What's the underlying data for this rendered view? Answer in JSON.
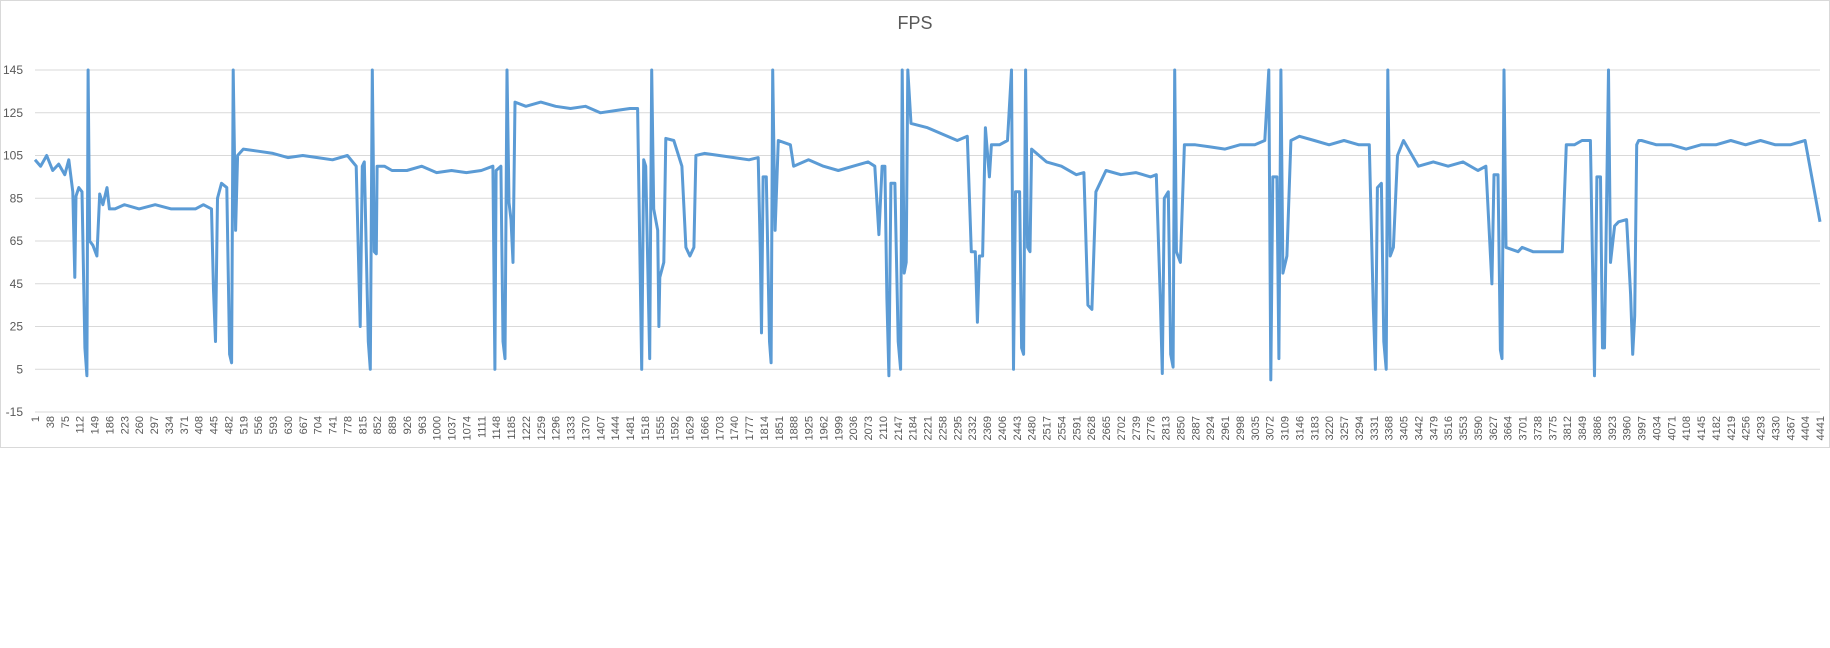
{
  "chart_data": {
    "type": "line",
    "title": "FPS",
    "xlabel": "",
    "ylabel": "",
    "ylim": [
      -15,
      145
    ],
    "yticks": [
      -15,
      5,
      25,
      45,
      65,
      85,
      105,
      125,
      145
    ],
    "grid": true,
    "legend": "none",
    "x_tick_labels": [
      "1",
      "38",
      "75",
      "112",
      "149",
      "186",
      "223",
      "260",
      "297",
      "334",
      "371",
      "408",
      "445",
      "482",
      "519",
      "556",
      "593",
      "630",
      "667",
      "704",
      "741",
      "778",
      "815",
      "852",
      "889",
      "926",
      "963",
      "1000",
      "1037",
      "1074",
      "1111",
      "1148",
      "1185",
      "1222",
      "1259",
      "1296",
      "1333",
      "1370",
      "1407",
      "1444",
      "1481",
      "1518",
      "1555",
      "1592",
      "1629",
      "1666",
      "1703",
      "1740",
      "1777",
      "1814",
      "1851",
      "1888",
      "1925",
      "1962",
      "1999",
      "2036",
      "2073",
      "2110",
      "2147",
      "2184",
      "2221",
      "2258",
      "2295",
      "2332",
      "2369",
      "2406",
      "2443",
      "2480",
      "2517",
      "2554",
      "2591",
      "2628",
      "2665",
      "2702",
      "2739",
      "2776",
      "2813",
      "2850",
      "2887",
      "2924",
      "2961",
      "2998",
      "3035",
      "3072",
      "3109",
      "3146",
      "3183",
      "3220",
      "3257",
      "3294",
      "3331",
      "3368",
      "3405",
      "3442",
      "3479",
      "3516",
      "3553",
      "3590",
      "3627",
      "3664",
      "3701",
      "3738",
      "3775",
      "3812",
      "3849",
      "3886",
      "3923",
      "3960",
      "3997",
      "4034",
      "4071",
      "4108",
      "4145",
      "4182",
      "4219",
      "4256",
      "4293",
      "4330",
      "4367",
      "4404",
      "4441"
    ],
    "series": [
      {
        "color": "#5b9bd5",
        "points": [
          [
            1,
            103
          ],
          [
            15,
            100
          ],
          [
            30,
            105
          ],
          [
            45,
            98
          ],
          [
            60,
            101
          ],
          [
            75,
            96
          ],
          [
            85,
            103
          ],
          [
            95,
            88
          ],
          [
            100,
            48
          ],
          [
            103,
            86
          ],
          [
            110,
            90
          ],
          [
            118,
            88
          ],
          [
            125,
            15
          ],
          [
            130,
            2
          ],
          [
            133,
            145
          ],
          [
            137,
            65
          ],
          [
            145,
            63
          ],
          [
            155,
            58
          ],
          [
            162,
            87
          ],
          [
            170,
            82
          ],
          [
            180,
            90
          ],
          [
            186,
            80
          ],
          [
            200,
            80
          ],
          [
            223,
            82
          ],
          [
            260,
            80
          ],
          [
            300,
            82
          ],
          [
            340,
            80
          ],
          [
            371,
            80
          ],
          [
            400,
            80
          ],
          [
            420,
            82
          ],
          [
            440,
            80
          ],
          [
            445,
            42
          ],
          [
            450,
            18
          ],
          [
            455,
            85
          ],
          [
            465,
            92
          ],
          [
            478,
            90
          ],
          [
            485,
            12
          ],
          [
            490,
            8
          ],
          [
            494,
            145
          ],
          [
            500,
            70
          ],
          [
            505,
            105
          ],
          [
            519,
            108
          ],
          [
            556,
            107
          ],
          [
            593,
            106
          ],
          [
            630,
            104
          ],
          [
            667,
            105
          ],
          [
            704,
            104
          ],
          [
            741,
            103
          ],
          [
            778,
            105
          ],
          [
            800,
            100
          ],
          [
            810,
            25
          ],
          [
            815,
            100
          ],
          [
            820,
            102
          ],
          [
            830,
            18
          ],
          [
            835,
            5
          ],
          [
            840,
            145
          ],
          [
            845,
            60
          ],
          [
            850,
            59
          ],
          [
            852,
            100
          ],
          [
            870,
            100
          ],
          [
            889,
            98
          ],
          [
            926,
            98
          ],
          [
            963,
            100
          ],
          [
            1000,
            97
          ],
          [
            1037,
            98
          ],
          [
            1074,
            97
          ],
          [
            1111,
            98
          ],
          [
            1140,
            100
          ],
          [
            1145,
            5
          ],
          [
            1148,
            98
          ],
          [
            1160,
            100
          ],
          [
            1165,
            18
          ],
          [
            1170,
            10
          ],
          [
            1175,
            145
          ],
          [
            1180,
            83
          ],
          [
            1185,
            75
          ],
          [
            1190,
            55
          ],
          [
            1195,
            130
          ],
          [
            1222,
            128
          ],
          [
            1259,
            130
          ],
          [
            1296,
            128
          ],
          [
            1333,
            127
          ],
          [
            1370,
            128
          ],
          [
            1407,
            125
          ],
          [
            1444,
            126
          ],
          [
            1481,
            127
          ],
          [
            1500,
            127
          ],
          [
            1510,
            5
          ],
          [
            1515,
            103
          ],
          [
            1520,
            100
          ],
          [
            1530,
            10
          ],
          [
            1535,
            145
          ],
          [
            1540,
            80
          ],
          [
            1550,
            70
          ],
          [
            1553,
            25
          ],
          [
            1555,
            48
          ],
          [
            1565,
            55
          ],
          [
            1570,
            113
          ],
          [
            1590,
            112
          ],
          [
            1610,
            100
          ],
          [
            1620,
            62
          ],
          [
            1630,
            58
          ],
          [
            1640,
            62
          ],
          [
            1645,
            105
          ],
          [
            1666,
            106
          ],
          [
            1703,
            105
          ],
          [
            1740,
            104
          ],
          [
            1777,
            103
          ],
          [
            1800,
            104
          ],
          [
            1805,
            60
          ],
          [
            1808,
            22
          ],
          [
            1812,
            95
          ],
          [
            1820,
            95
          ],
          [
            1828,
            18
          ],
          [
            1832,
            8
          ],
          [
            1836,
            145
          ],
          [
            1842,
            70
          ],
          [
            1850,
            112
          ],
          [
            1880,
            110
          ],
          [
            1888,
            100
          ],
          [
            1925,
            103
          ],
          [
            1962,
            100
          ],
          [
            1999,
            98
          ],
          [
            2036,
            100
          ],
          [
            2073,
            102
          ],
          [
            2090,
            100
          ],
          [
            2100,
            68
          ],
          [
            2108,
            100
          ],
          [
            2115,
            100
          ],
          [
            2120,
            38
          ],
          [
            2125,
            2
          ],
          [
            2130,
            92
          ],
          [
            2140,
            92
          ],
          [
            2148,
            18
          ],
          [
            2154,
            5
          ],
          [
            2158,
            145
          ],
          [
            2163,
            50
          ],
          [
            2168,
            55
          ],
          [
            2172,
            145
          ],
          [
            2180,
            120
          ],
          [
            2221,
            118
          ],
          [
            2258,
            115
          ],
          [
            2295,
            112
          ],
          [
            2320,
            114
          ],
          [
            2330,
            60
          ],
          [
            2340,
            60
          ],
          [
            2345,
            27
          ],
          [
            2350,
            58
          ],
          [
            2358,
            58
          ],
          [
            2365,
            118
          ],
          [
            2375,
            95
          ],
          [
            2380,
            110
          ],
          [
            2400,
            110
          ],
          [
            2420,
            112
          ],
          [
            2430,
            145
          ],
          [
            2435,
            5
          ],
          [
            2440,
            88
          ],
          [
            2450,
            88
          ],
          [
            2455,
            15
          ],
          [
            2460,
            12
          ],
          [
            2465,
            145
          ],
          [
            2470,
            62
          ],
          [
            2476,
            60
          ],
          [
            2480,
            108
          ],
          [
            2517,
            102
          ],
          [
            2554,
            100
          ],
          [
            2591,
            96
          ],
          [
            2610,
            97
          ],
          [
            2620,
            35
          ],
          [
            2630,
            33
          ],
          [
            2640,
            88
          ],
          [
            2665,
            98
          ],
          [
            2702,
            96
          ],
          [
            2739,
            97
          ],
          [
            2776,
            95
          ],
          [
            2790,
            96
          ],
          [
            2800,
            38
          ],
          [
            2805,
            3
          ],
          [
            2810,
            85
          ],
          [
            2820,
            88
          ],
          [
            2826,
            12
          ],
          [
            2832,
            6
          ],
          [
            2836,
            145
          ],
          [
            2840,
            60
          ],
          [
            2850,
            55
          ],
          [
            2860,
            110
          ],
          [
            2887,
            110
          ],
          [
            2924,
            109
          ],
          [
            2961,
            108
          ],
          [
            2998,
            110
          ],
          [
            3035,
            110
          ],
          [
            3060,
            112
          ],
          [
            3070,
            145
          ],
          [
            3075,
            0
          ],
          [
            3080,
            95
          ],
          [
            3090,
            95
          ],
          [
            3095,
            10
          ],
          [
            3100,
            145
          ],
          [
            3105,
            50
          ],
          [
            3115,
            58
          ],
          [
            3125,
            112
          ],
          [
            3146,
            114
          ],
          [
            3183,
            112
          ],
          [
            3220,
            110
          ],
          [
            3257,
            112
          ],
          [
            3294,
            110
          ],
          [
            3320,
            110
          ],
          [
            3330,
            34
          ],
          [
            3335,
            5
          ],
          [
            3340,
            90
          ],
          [
            3350,
            92
          ],
          [
            3356,
            18
          ],
          [
            3362,
            5
          ],
          [
            3366,
            145
          ],
          [
            3372,
            58
          ],
          [
            3380,
            62
          ],
          [
            3390,
            105
          ],
          [
            3405,
            112
          ],
          [
            3442,
            100
          ],
          [
            3479,
            102
          ],
          [
            3516,
            100
          ],
          [
            3553,
            102
          ],
          [
            3590,
            98
          ],
          [
            3610,
            100
          ],
          [
            3625,
            45
          ],
          [
            3630,
            96
          ],
          [
            3640,
            96
          ],
          [
            3646,
            14
          ],
          [
            3650,
            10
          ],
          [
            3655,
            145
          ],
          [
            3660,
            62
          ],
          [
            3690,
            60
          ],
          [
            3700,
            62
          ],
          [
            3727,
            60
          ],
          [
            3760,
            60
          ],
          [
            3790,
            60
          ],
          [
            3800,
            60
          ],
          [
            3810,
            110
          ],
          [
            3830,
            110
          ],
          [
            3849,
            112
          ],
          [
            3870,
            112
          ],
          [
            3880,
            2
          ],
          [
            3886,
            95
          ],
          [
            3895,
            95
          ],
          [
            3900,
            15
          ],
          [
            3905,
            15
          ],
          [
            3915,
            145
          ],
          [
            3920,
            55
          ],
          [
            3930,
            72
          ],
          [
            3940,
            74
          ],
          [
            3960,
            75
          ],
          [
            3970,
            40
          ],
          [
            3975,
            12
          ],
          [
            3980,
            30
          ],
          [
            3985,
            110
          ],
          [
            3990,
            112
          ],
          [
            3997,
            112
          ],
          [
            4034,
            110
          ],
          [
            4071,
            110
          ],
          [
            4108,
            108
          ],
          [
            4145,
            110
          ],
          [
            4182,
            110
          ],
          [
            4219,
            112
          ],
          [
            4256,
            110
          ],
          [
            4293,
            112
          ],
          [
            4330,
            110
          ],
          [
            4367,
            110
          ],
          [
            4404,
            112
          ],
          [
            4441,
            74
          ]
        ]
      }
    ]
  }
}
